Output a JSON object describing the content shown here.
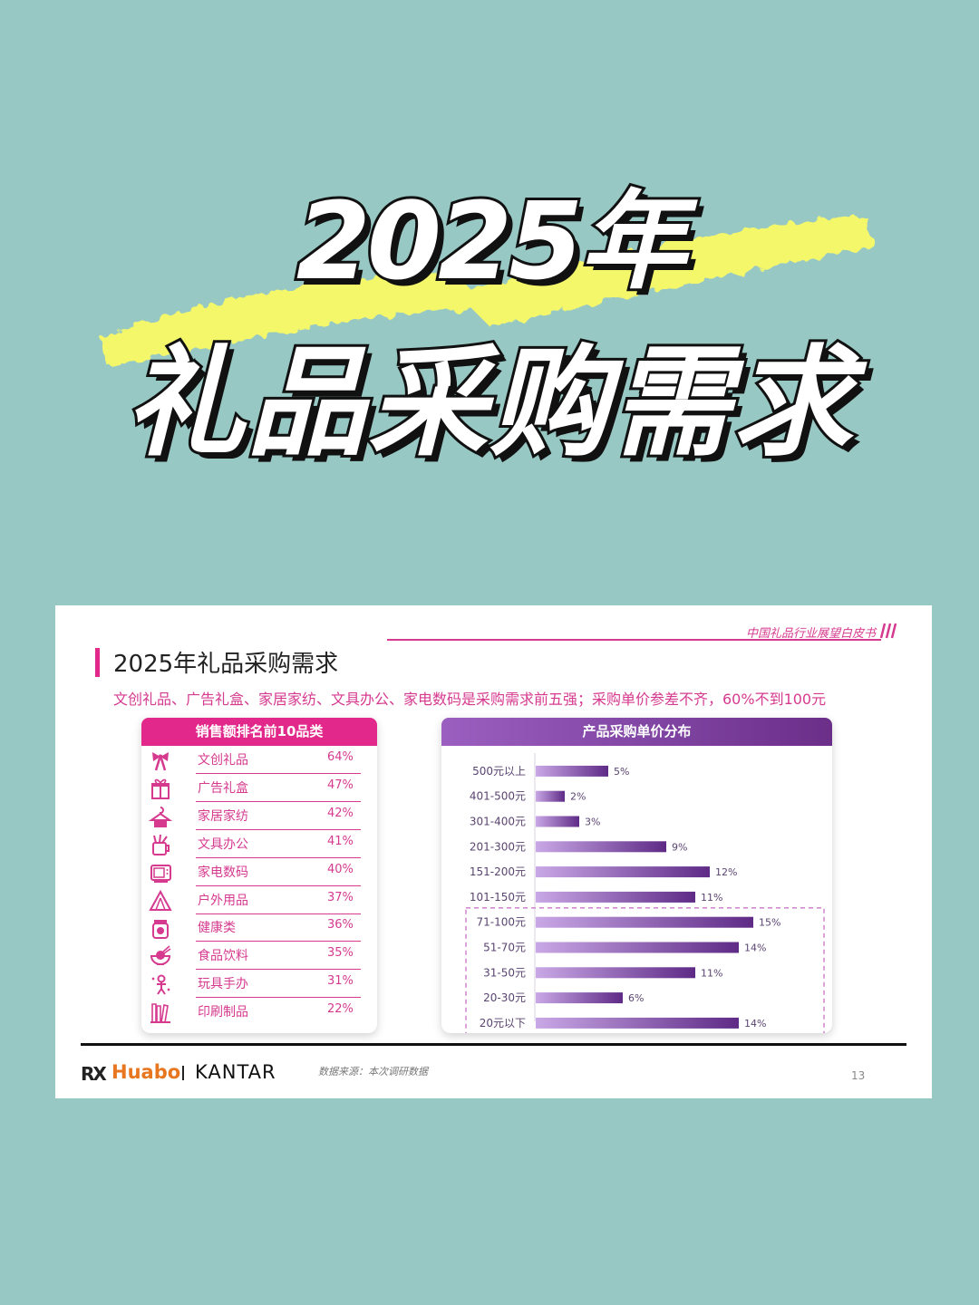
{
  "hero": {
    "line1": "2025年",
    "line2": "礼品采购需求"
  },
  "slide": {
    "brand_tag": "中国礼品行业展望白皮书",
    "title": "2025年礼品采购需求",
    "subtitle": "文创礼品、广告礼盒、家居家纺、文具办公、家电数码是采购需求前五强；采购单价参差不齐，60%不到100元",
    "source": "数据来源：本次调研数据",
    "page_number": "13",
    "logos": {
      "rx": "RX",
      "huabo": "Huabo",
      "kantar": "KANTAR"
    }
  },
  "chart_data": [
    {
      "type": "table",
      "title": "销售额排名前10品类",
      "rows": [
        {
          "name": "文创礼品",
          "value": "64%",
          "icon": "bow-icon"
        },
        {
          "name": "广告礼盒",
          "value": "47%",
          "icon": "gift-box-icon"
        },
        {
          "name": "家居家纺",
          "value": "42%",
          "icon": "clothes-hanger-icon"
        },
        {
          "name": "文具办公",
          "value": "41%",
          "icon": "pen-holder-icon"
        },
        {
          "name": "家电数码",
          "value": "40%",
          "icon": "microwave-icon"
        },
        {
          "name": "户外用品",
          "value": "37%",
          "icon": "tent-icon"
        },
        {
          "name": "健康类",
          "value": "36%",
          "icon": "health-jar-icon"
        },
        {
          "name": "食品饮料",
          "value": "35%",
          "icon": "rice-bowl-icon"
        },
        {
          "name": "玩具手办",
          "value": "31%",
          "icon": "toy-figure-icon"
        },
        {
          "name": "印刷制品",
          "value": "22%",
          "icon": "books-icon"
        }
      ]
    },
    {
      "type": "bar",
      "orientation": "horizontal",
      "title": "产品采购单价分布",
      "categories": [
        "500元以上",
        "401-500元",
        "301-400元",
        "201-300元",
        "151-200元",
        "101-150元",
        "71-100元",
        "51-70元",
        "31-50元",
        "20-30元",
        "20元以下"
      ],
      "values": [
        5,
        2,
        3,
        9,
        12,
        11,
        15,
        14,
        11,
        6,
        14
      ],
      "value_labels": [
        "5%",
        "2%",
        "3%",
        "9%",
        "12%",
        "11%",
        "15%",
        "14%",
        "11%",
        "6%",
        "14%"
      ],
      "unit": "%",
      "xlim": [
        0,
        15
      ],
      "highlight_categories": [
        "71-100元",
        "51-70元",
        "31-50元",
        "20-30元",
        "20元以下"
      ],
      "highlight_style": "dashed-box",
      "colors": {
        "bar_start": "#c9a8e6",
        "bar_end": "#5e2a86",
        "label": "#5a4470",
        "highlight": "#d38ad0"
      }
    }
  ],
  "colors": {
    "background": "#97c8c4",
    "accent_pink": "#e2288a",
    "highlight_yellow": "#f4f76a",
    "purple": "#6b2f8a"
  }
}
